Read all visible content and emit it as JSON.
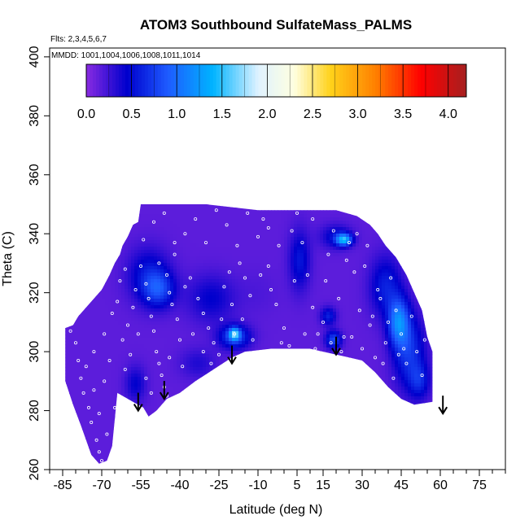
{
  "chart_data": {
    "type": "heatmap",
    "title": "ATOM3 Southbound SulfateMass_PALMS",
    "flights_note": "Flts: 2,3,4,5,6,7",
    "dates_note": "MMDD: 1001,1004,1006,1008,1011,1014",
    "xlabel": "Latitude (deg N)",
    "ylabel": "Theta (C)",
    "xlim": [
      -90,
      85
    ],
    "ylim": [
      260,
      403
    ],
    "x_ticks": [
      -85,
      -70,
      -55,
      -40,
      -25,
      -10,
      5,
      15,
      30,
      45,
      60,
      75
    ],
    "x_minor_ticks": [
      -90,
      -85,
      -80,
      -75,
      -70,
      -65,
      -60,
      -55,
      -50,
      -45,
      -40,
      -35,
      -30,
      -25,
      -20,
      -15,
      -10,
      -5,
      0,
      5,
      10,
      15,
      20,
      25,
      30,
      35,
      40,
      45,
      50,
      55,
      60,
      65,
      70,
      75,
      80,
      85
    ],
    "y_ticks": [
      260,
      280,
      300,
      320,
      340,
      360,
      380,
      400
    ],
    "colorbar": {
      "min": 0.0,
      "max": 4.2,
      "ticks": [
        "0.0",
        "0.5",
        "1.0",
        "1.5",
        "2.0",
        "2.5",
        "3.0",
        "3.5",
        "4.0"
      ],
      "tick_values": [
        0.0,
        0.5,
        1.0,
        1.5,
        2.0,
        2.5,
        3.0,
        3.5,
        4.0
      ],
      "stops": [
        {
          "v": 0.0,
          "color": "#8a2be2"
        },
        {
          "v": 0.45,
          "color": "#0000cd"
        },
        {
          "v": 0.9,
          "color": "#1e5bff"
        },
        {
          "v": 1.4,
          "color": "#00b4ff"
        },
        {
          "v": 1.9,
          "color": "#dff2ff"
        },
        {
          "v": 2.3,
          "color": "#ffffe0"
        },
        {
          "v": 2.7,
          "color": "#ffd21a"
        },
        {
          "v": 3.2,
          "color": "#ff7f00"
        },
        {
          "v": 3.7,
          "color": "#ff0000"
        },
        {
          "v": 4.2,
          "color": "#a52020"
        }
      ]
    },
    "data_region_outline": [
      [
        -84,
        308
      ],
      [
        -81,
        309
      ],
      [
        -79,
        312
      ],
      [
        -76,
        315
      ],
      [
        -73,
        318
      ],
      [
        -70,
        321
      ],
      [
        -67,
        326
      ],
      [
        -65,
        330
      ],
      [
        -63,
        333
      ],
      [
        -62,
        336
      ],
      [
        -60,
        339
      ],
      [
        -58,
        343
      ],
      [
        -56,
        344
      ],
      [
        -55,
        350
      ],
      [
        -35,
        350
      ],
      [
        -30,
        350
      ],
      [
        -20,
        349
      ],
      [
        -10,
        348
      ],
      [
        20,
        348
      ],
      [
        28,
        346
      ],
      [
        33,
        343
      ],
      [
        36,
        340
      ],
      [
        39,
        336
      ],
      [
        43,
        332
      ],
      [
        47,
        326
      ],
      [
        50,
        320
      ],
      [
        53,
        314
      ],
      [
        55,
        305
      ],
      [
        57,
        300
      ],
      [
        57,
        283
      ],
      [
        50,
        282
      ],
      [
        45,
        284
      ],
      [
        40,
        288
      ],
      [
        35,
        293
      ],
      [
        30,
        297
      ],
      [
        25,
        298
      ],
      [
        15,
        300
      ],
      [
        10,
        301
      ],
      [
        -5,
        301
      ],
      [
        -15,
        300
      ],
      [
        -20,
        298
      ],
      [
        -27,
        294
      ],
      [
        -34,
        290
      ],
      [
        -40,
        286
      ],
      [
        -45,
        284
      ],
      [
        -49,
        280
      ],
      [
        -52,
        278
      ],
      [
        -54,
        281
      ],
      [
        -58,
        283
      ],
      [
        -64,
        286
      ],
      [
        -66,
        268
      ],
      [
        -68,
        263
      ],
      [
        -71,
        262
      ],
      [
        -74,
        265
      ],
      [
        -76,
        270
      ],
      [
        -78,
        275
      ],
      [
        -81,
        282
      ],
      [
        -84,
        290
      ]
    ],
    "background_value": 0.15,
    "concentration_patches": [
      {
        "lat": -52,
        "theta": 326,
        "value": 0.55,
        "rlat": 8,
        "rtheta": 9
      },
      {
        "lat": -48,
        "theta": 321,
        "value": 0.7,
        "rlat": 6,
        "rtheta": 6
      },
      {
        "lat": -28,
        "theta": 318,
        "value": 0.45,
        "rlat": 9,
        "rtheta": 8
      },
      {
        "lat": -19,
        "theta": 305,
        "value": 0.8,
        "rlat": 6,
        "rtheta": 4
      },
      {
        "lat": -19,
        "theta": 306,
        "value": 1.2,
        "rlat": 2,
        "rtheta": 2
      },
      {
        "lat": -10,
        "theta": 320,
        "value": 0.2,
        "rlat": 8,
        "rtheta": 8
      },
      {
        "lat": 6,
        "theta": 331,
        "value": 0.55,
        "rlat": 4,
        "rtheta": 10
      },
      {
        "lat": 20,
        "theta": 339,
        "value": 0.5,
        "rlat": 6,
        "rtheta": 4
      },
      {
        "lat": 23,
        "theta": 338,
        "value": 1.3,
        "rlat": 3,
        "rtheta": 2
      },
      {
        "lat": 17,
        "theta": 312,
        "value": 0.6,
        "rlat": 3,
        "rtheta": 3
      },
      {
        "lat": 19,
        "theta": 304,
        "value": 0.8,
        "rlat": 3,
        "rtheta": 3
      },
      {
        "lat": 39,
        "theta": 322,
        "value": 0.6,
        "rlat": 6,
        "rtheta": 10
      },
      {
        "lat": 44,
        "theta": 310,
        "value": 1.05,
        "rlat": 4,
        "rtheta": 8
      },
      {
        "lat": 48,
        "theta": 300,
        "value": 0.7,
        "rlat": 6,
        "rtheta": 12
      },
      {
        "lat": 52,
        "theta": 290,
        "value": 0.55,
        "rlat": 4,
        "rtheta": 6
      },
      {
        "lat": -57,
        "theta": 289,
        "value": 0.45,
        "rlat": 4,
        "rtheta": 6
      },
      {
        "lat": -33,
        "theta": 296,
        "value": 0.35,
        "rlat": 7,
        "rtheta": 5
      }
    ],
    "observation_points": [
      [
        -82,
        307
      ],
      [
        -80,
        303
      ],
      [
        -79,
        297
      ],
      [
        -78,
        291
      ],
      [
        -77,
        286
      ],
      [
        -75,
        281
      ],
      [
        -74,
        276
      ],
      [
        -72,
        270
      ],
      [
        -71,
        266
      ],
      [
        -70,
        263
      ],
      [
        -68,
        272
      ],
      [
        -73,
        300
      ],
      [
        -69,
        306
      ],
      [
        -66,
        313
      ],
      [
        -64,
        317
      ],
      [
        -62,
        304
      ],
      [
        -60,
        309
      ],
      [
        -58,
        315
      ],
      [
        -57,
        321
      ],
      [
        -55,
        329
      ],
      [
        -53,
        323
      ],
      [
        -52,
        318
      ],
      [
        -51,
        312
      ],
      [
        -50,
        307
      ],
      [
        -49,
        300
      ],
      [
        -48,
        296
      ],
      [
        -47,
        292
      ],
      [
        -46,
        288
      ],
      [
        -45,
        285
      ],
      [
        -44,
        320
      ],
      [
        -43,
        316
      ],
      [
        -41,
        311
      ],
      [
        -40,
        304
      ],
      [
        -38,
        322
      ],
      [
        -36,
        325
      ],
      [
        -33,
        318
      ],
      [
        -31,
        313
      ],
      [
        -29,
        308
      ],
      [
        -27,
        303
      ],
      [
        -25,
        299
      ],
      [
        -23,
        322
      ],
      [
        -21,
        327
      ],
      [
        -19,
        306
      ],
      [
        -17,
        330
      ],
      [
        -15,
        325
      ],
      [
        -12,
        304
      ],
      [
        -10,
        339
      ],
      [
        -8,
        345
      ],
      [
        -6,
        329
      ],
      [
        -3,
        316
      ],
      [
        0,
        308
      ],
      [
        2,
        302
      ],
      [
        5,
        347
      ],
      [
        7,
        337
      ],
      [
        9,
        326
      ],
      [
        11,
        315
      ],
      [
        13,
        306
      ],
      [
        15,
        310
      ],
      [
        17,
        333
      ],
      [
        19,
        341
      ],
      [
        21,
        318
      ],
      [
        23,
        305
      ],
      [
        25,
        337
      ],
      [
        27,
        327
      ],
      [
        29,
        314
      ],
      [
        31,
        329
      ],
      [
        33,
        309
      ],
      [
        35,
        298
      ],
      [
        37,
        318
      ],
      [
        39,
        303
      ],
      [
        41,
        325
      ],
      [
        43,
        314
      ],
      [
        45,
        306
      ],
      [
        47,
        296
      ],
      [
        49,
        312
      ],
      [
        51,
        300
      ],
      [
        53,
        292
      ],
      [
        -54,
        338
      ],
      [
        -50,
        344
      ],
      [
        -46,
        347
      ],
      [
        -42,
        333
      ],
      [
        -38,
        340
      ],
      [
        -34,
        345
      ],
      [
        -30,
        337
      ],
      [
        -26,
        348
      ],
      [
        -22,
        343
      ],
      [
        -18,
        336
      ],
      [
        -14,
        347
      ],
      [
        -6,
        342
      ],
      [
        -2,
        336
      ],
      [
        3,
        341
      ],
      [
        11,
        345
      ],
      [
        16,
        324
      ],
      [
        24,
        331
      ],
      [
        28,
        340
      ],
      [
        32,
        336
      ],
      [
        36,
        321
      ],
      [
        40,
        310
      ],
      [
        44,
        299
      ],
      [
        -65,
        281
      ],
      [
        -61,
        294
      ],
      [
        -59,
        299
      ],
      [
        -56,
        306
      ],
      [
        -53,
        291
      ],
      [
        -51,
        286
      ],
      [
        -44,
        298
      ],
      [
        -39,
        295
      ],
      [
        -35,
        306
      ],
      [
        -31,
        300
      ],
      [
        -28,
        296
      ],
      [
        -24,
        311
      ],
      [
        -20,
        316
      ],
      [
        -16,
        311
      ],
      [
        -13,
        319
      ],
      [
        -9,
        326
      ],
      [
        -5,
        321
      ],
      [
        -1,
        303
      ],
      [
        4,
        324
      ],
      [
        8,
        306
      ],
      [
        12,
        301
      ],
      [
        18,
        303
      ],
      [
        22,
        300
      ],
      [
        26,
        305
      ],
      [
        30,
        301
      ],
      [
        34,
        312
      ],
      [
        38,
        296
      ],
      [
        42,
        291
      ],
      [
        46,
        301
      ],
      [
        50,
        322
      ],
      [
        54,
        304
      ],
      [
        -76,
        295
      ],
      [
        -73,
        287
      ],
      [
        -71,
        279
      ],
      [
        -69,
        290
      ],
      [
        -67,
        297
      ],
      [
        -63,
        324
      ],
      [
        -61,
        328
      ],
      [
        -48,
        330
      ],
      [
        -45,
        326
      ],
      [
        -42,
        337
      ]
    ],
    "arrows": [
      {
        "lat": -56,
        "theta": 280
      },
      {
        "lat": -46,
        "theta": 284
      },
      {
        "lat": -20,
        "theta": 296
      },
      {
        "lat": 20,
        "theta": 299
      },
      {
        "lat": 61,
        "theta": 279
      }
    ]
  }
}
